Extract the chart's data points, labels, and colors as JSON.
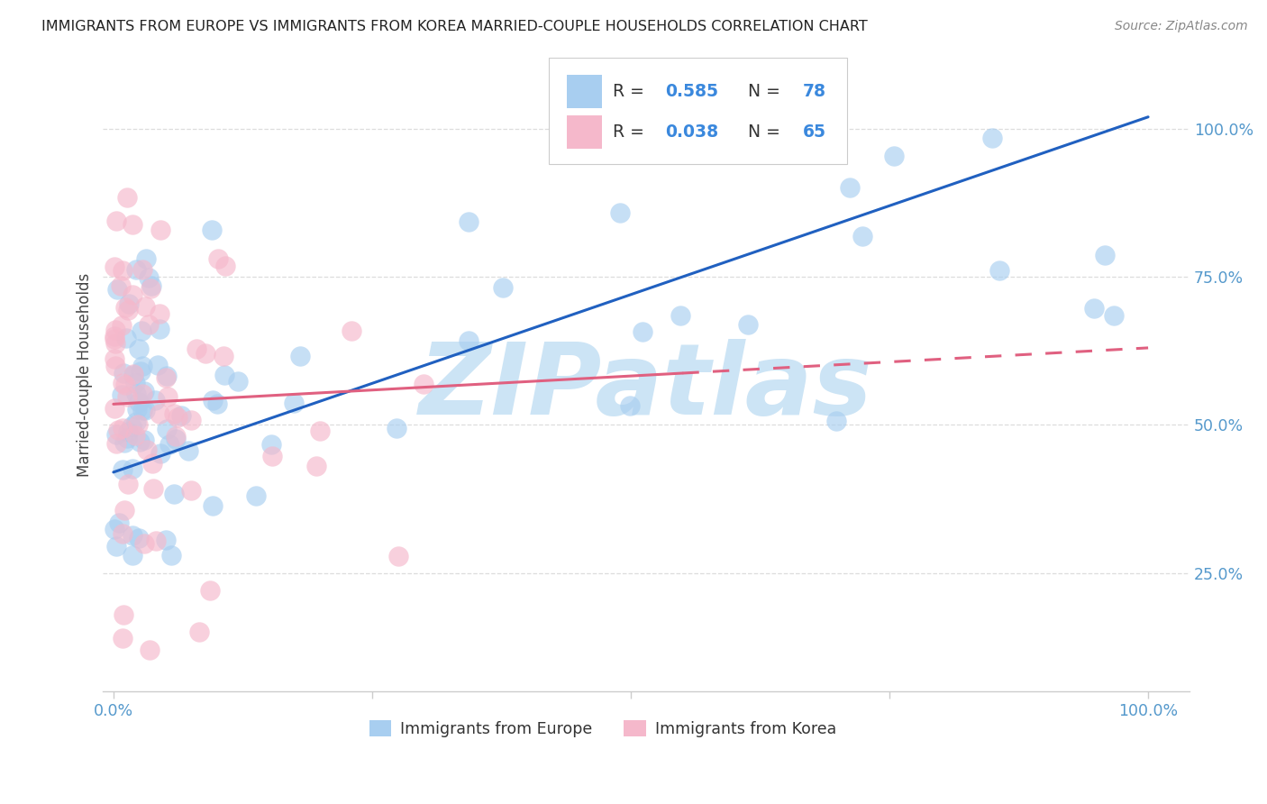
{
  "title": "IMMIGRANTS FROM EUROPE VS IMMIGRANTS FROM KOREA MARRIED-COUPLE HOUSEHOLDS CORRELATION CHART",
  "source": "Source: ZipAtlas.com",
  "ylabel": "Married-couple Households",
  "europe_color": "#a8cef0",
  "korea_color": "#f5b8cb",
  "europe_line_color": "#2060c0",
  "korea_line_color": "#e06080",
  "watermark": "ZIPatlas",
  "watermark_color": "#cce4f5",
  "background_color": "#ffffff",
  "xlim": [
    -0.01,
    1.04
  ],
  "ylim": [
    0.05,
    1.12
  ],
  "europe_R": 0.585,
  "europe_N": 78,
  "korea_R": 0.038,
  "korea_N": 65,
  "grid_color": "#dddddd",
  "tick_color": "#5599cc",
  "spine_color": "#cccccc"
}
